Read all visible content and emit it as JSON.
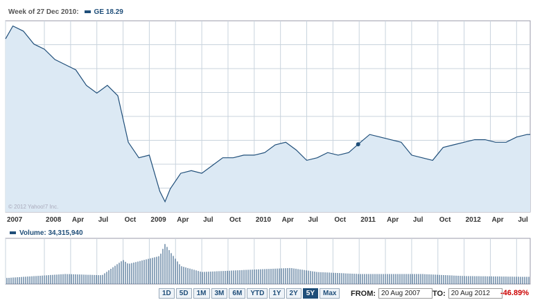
{
  "legend": {
    "week": "Week of 27 Dec 2010:",
    "ticker_value": "GE 18.29"
  },
  "volume": {
    "label": "Volume: 34,315,940"
  },
  "watermark": "© 2012 Yahoo!7 Inc.",
  "ranges": [
    "1D",
    "5D",
    "1M",
    "3M",
    "6M",
    "YTD",
    "1Y",
    "2Y",
    "5Y",
    "Max"
  ],
  "active_range": "5Y",
  "from": {
    "label": "FROM:",
    "value": "20 Aug 2007"
  },
  "to": {
    "label": "TO:",
    "value": "20 Aug 2012"
  },
  "change": "-46.89%",
  "colors": {
    "line": "#1f4e79",
    "fill": "#dce9f4",
    "grid": "#c8d3dd",
    "change": "#cc0000"
  },
  "chart_data": {
    "type": "area",
    "x_tick_labels": [
      "2007",
      "2008",
      "Apr",
      "Jul",
      "Oct",
      "2009",
      "Apr",
      "Jul",
      "Oct",
      "2010",
      "Apr",
      "Jul",
      "Oct",
      "2011",
      "Apr",
      "Jul",
      "Oct",
      "2012",
      "Apr",
      "Jul"
    ],
    "x": [
      2007.63,
      2007.7,
      2007.8,
      2007.9,
      2008.0,
      2008.1,
      2008.2,
      2008.3,
      2008.4,
      2008.5,
      2008.6,
      2008.7,
      2008.8,
      2008.9,
      2009.0,
      2009.1,
      2009.15,
      2009.2,
      2009.3,
      2009.4,
      2009.5,
      2009.6,
      2009.7,
      2009.8,
      2009.9,
      2010.0,
      2010.1,
      2010.2,
      2010.3,
      2010.4,
      2010.5,
      2010.6,
      2010.7,
      2010.8,
      2010.9,
      2011.0,
      2011.1,
      2011.2,
      2011.3,
      2011.4,
      2011.5,
      2011.6,
      2011.7,
      2011.8,
      2011.9,
      2012.0,
      2012.1,
      2012.2,
      2012.3,
      2012.4,
      2012.5,
      2012.6,
      2012.63
    ],
    "y": [
      38.5,
      41.0,
      40.0,
      37.5,
      36.5,
      34.5,
      33.5,
      32.5,
      29.5,
      28.0,
      29.5,
      27.5,
      18.5,
      15.5,
      16.0,
      9.0,
      7.0,
      9.5,
      12.5,
      13.0,
      12.5,
      14.0,
      15.5,
      15.5,
      16.0,
      16.0,
      16.5,
      18.0,
      18.5,
      17.0,
      15.0,
      15.5,
      16.5,
      16.0,
      16.5,
      18.29,
      20.0,
      19.5,
      19.0,
      18.5,
      16.0,
      15.5,
      15.0,
      17.5,
      18.0,
      18.5,
      19.0,
      19.0,
      18.5,
      18.5,
      19.5,
      20.0,
      20.0
    ],
    "highlight_x": 2010.99,
    "volume_x": [
      2007.63,
      2008.2,
      2008.55,
      2008.75,
      2008.8,
      2009.1,
      2009.15,
      2009.2,
      2009.3,
      2009.5,
      2009.9,
      2010.35,
      2010.6,
      2011.0,
      2011.6,
      2012.0,
      2012.6
    ],
    "volume_y": [
      0.15,
      0.25,
      0.22,
      0.6,
      0.5,
      0.7,
      1.0,
      0.8,
      0.45,
      0.3,
      0.35,
      0.4,
      0.3,
      0.25,
      0.25,
      0.2,
      0.18
    ],
    "grid": true
  }
}
